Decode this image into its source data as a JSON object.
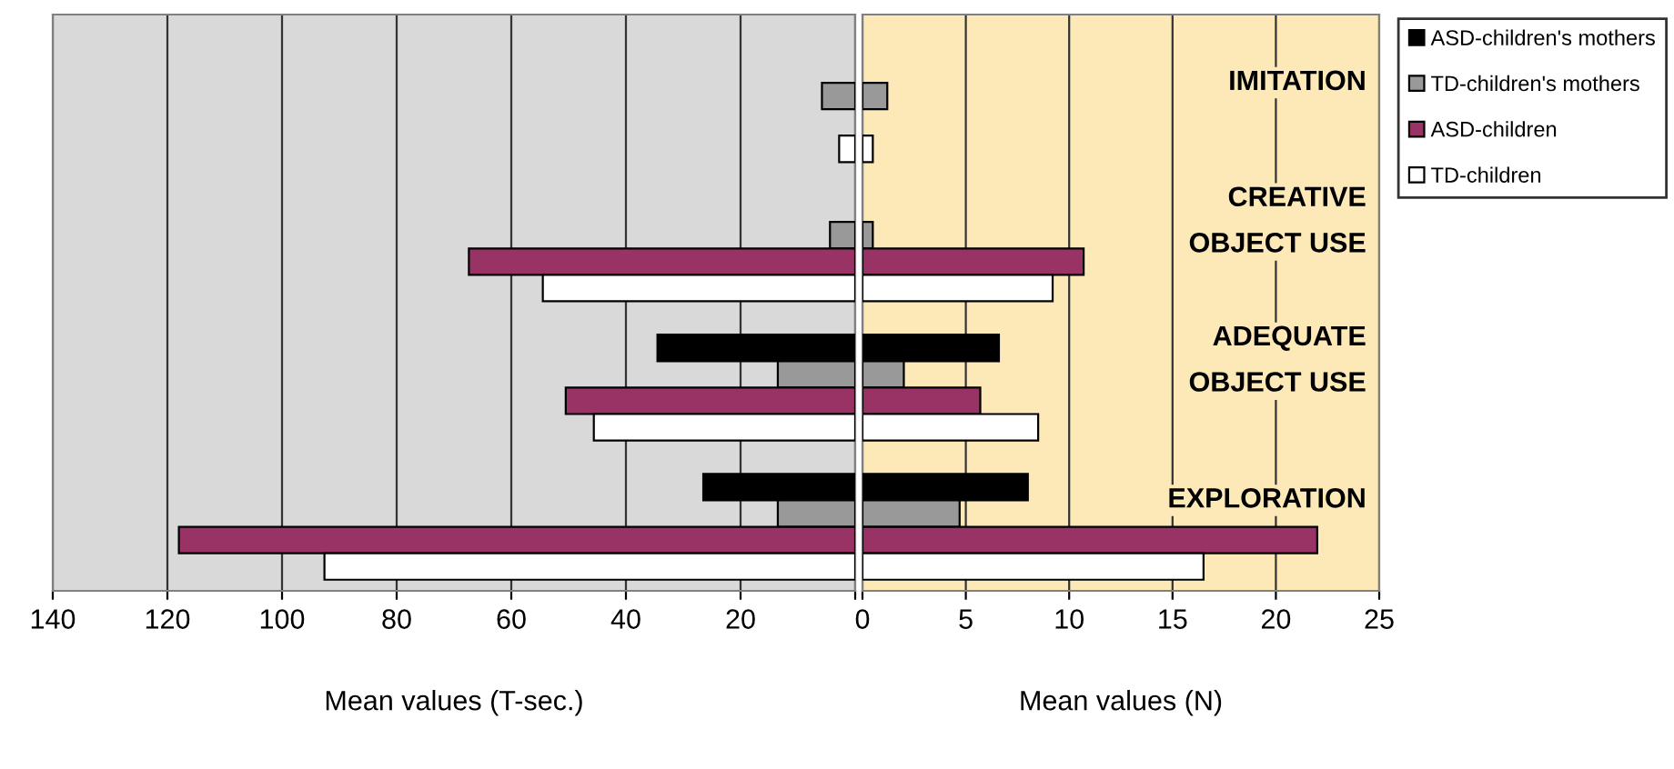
{
  "chart_data": [
    {
      "type": "bar",
      "orientation": "horizontal",
      "xlabel": "Mean values (T-sec.)",
      "categories": [
        null,
        null,
        null,
        null
      ],
      "tick_labels": "x",
      "grid": "x",
      "legend": "top right",
      "xlim": [
        140,
        0
      ],
      "xticks": [
        140,
        120,
        100,
        80,
        60,
        40,
        20,
        {
          "value": 0,
          "label": null
        }
      ],
      "series": [
        {
          "name": "ASD-children's mothers",
          "color": "#000000",
          "values": [
            null,
            null,
            34.5,
            26.5
          ]
        },
        {
          "name": "TD-children's mothers",
          "color": "#999999",
          "values": [
            5.8,
            4.4,
            13.5,
            13.5
          ]
        },
        {
          "name": "ASD-children",
          "color": "#993366",
          "values": [
            null,
            67.4,
            50.5,
            118
          ]
        },
        {
          "name": "TD-children",
          "color": "#ffffff",
          "values": [
            2.8,
            54.5,
            45.6,
            92.6
          ]
        }
      ]
    },
    {
      "type": "bar",
      "orientation": "horizontal",
      "xlabel": "Mean values (N)",
      "categories": [
        "IMITATION",
        "CREATIVE\nOBJECT USE",
        "ADEQUATE\nOBJECT USE",
        "EXPLORATION"
      ],
      "tick_labels": "x",
      "grid": "x",
      "xlim": [
        0,
        25
      ],
      "xticks": [
        0,
        5,
        10,
        15,
        20,
        25
      ],
      "series": [
        {
          "color": "#000000",
          "values": [
            null,
            null,
            6.6,
            8.0
          ]
        },
        {
          "color": "#999999",
          "values": [
            1.2,
            0.5,
            2.0,
            4.7
          ]
        },
        {
          "color": "#993366",
          "values": [
            null,
            10.7,
            5.7,
            22.0
          ]
        },
        {
          "color": "#ffffff",
          "values": [
            0.5,
            9.2,
            8.5,
            16.5
          ]
        }
      ]
    }
  ]
}
